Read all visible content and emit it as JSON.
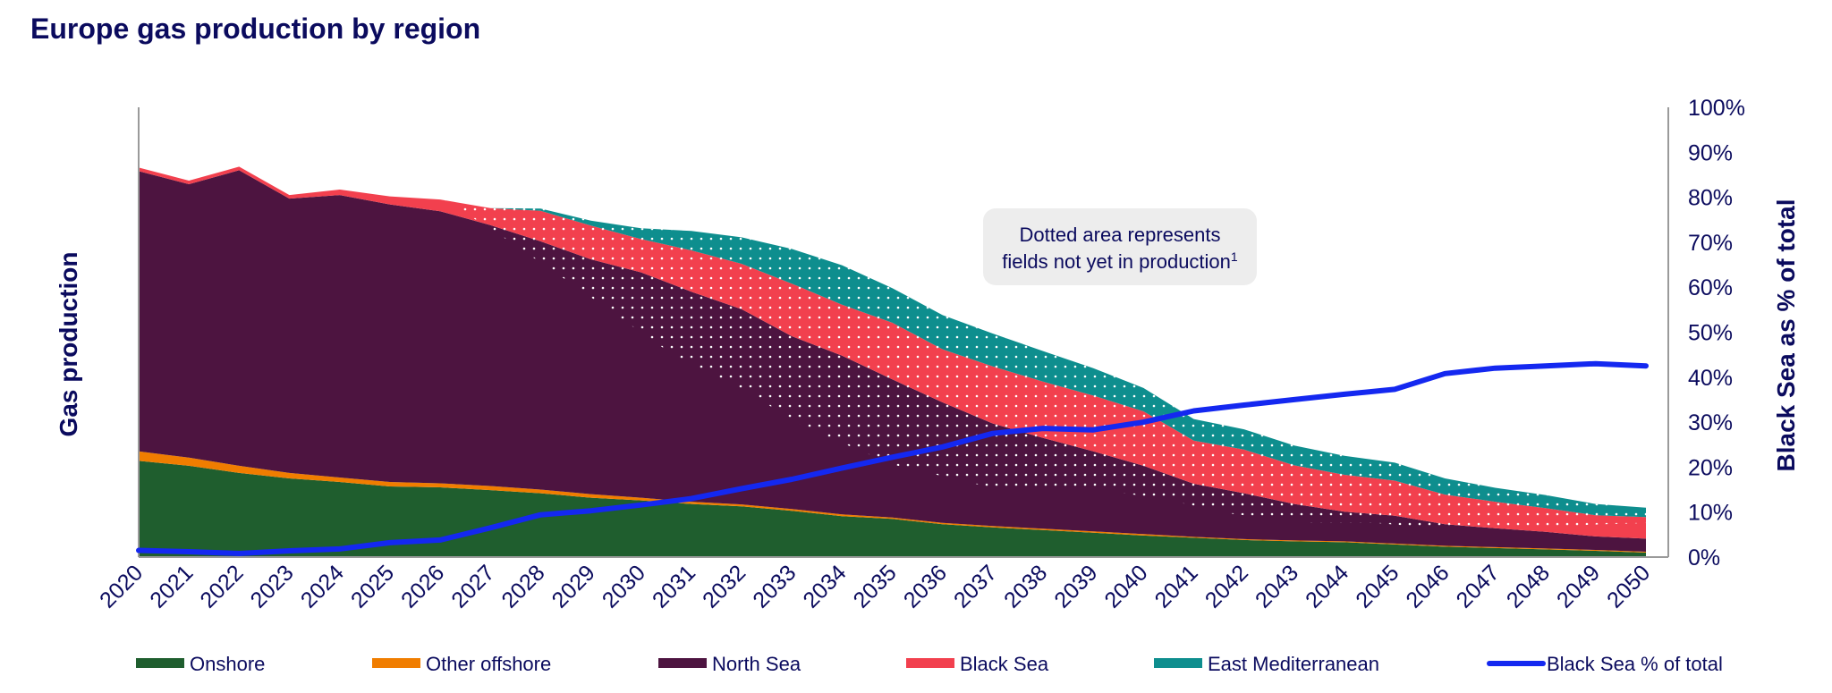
{
  "title": "Europe gas production by region",
  "annotation": {
    "line1": "Dotted area represents",
    "line2": "fields not yet in production",
    "superscript": "1"
  },
  "chart_data": {
    "type": "area",
    "title": "Europe gas production by region",
    "ylabel": "Gas production",
    "y2label": "Black Sea as % of total",
    "x": [
      2020,
      2021,
      2022,
      2023,
      2024,
      2025,
      2026,
      2027,
      2028,
      2029,
      2030,
      2031,
      2032,
      2033,
      2034,
      2035,
      2036,
      2037,
      2038,
      2039,
      2040,
      2041,
      2042,
      2043,
      2044,
      2045,
      2046,
      2047,
      2048,
      2049,
      2050
    ],
    "ylim": [
      0,
      100
    ],
    "y2lim": [
      0,
      100
    ],
    "y2_ticks": [
      "0%",
      "10%",
      "20%",
      "30%",
      "40%",
      "50%",
      "60%",
      "70%",
      "80%",
      "90%",
      "100%"
    ],
    "stacked": true,
    "series": [
      {
        "name": "Onshore",
        "color": "#1f5e2e",
        "values": [
          21.4,
          20.3,
          18.7,
          17.5,
          16.7,
          15.7,
          15.5,
          14.9,
          14.2,
          13.2,
          12.6,
          11.8,
          11.3,
          10.3,
          9.1,
          8.5,
          7.3,
          6.6,
          6.0,
          5.4,
          4.8,
          4.3,
          3.8,
          3.5,
          3.3,
          2.8,
          2.3,
          2.0,
          1.7,
          1.4,
          1.0
        ]
      },
      {
        "name": "Other offshore",
        "color": "#f07d00",
        "values": [
          2.1,
          1.8,
          1.6,
          1.2,
          1.0,
          1.0,
          0.9,
          0.9,
          0.8,
          0.8,
          0.6,
          0.5,
          0.4,
          0.4,
          0.4,
          0.3,
          0.3,
          0.3,
          0.3,
          0.3,
          0.3,
          0.2,
          0.2,
          0.2,
          0.2,
          0.2,
          0.2,
          0.2,
          0.2,
          0.2,
          0.2
        ]
      },
      {
        "name": "North Sea",
        "color": "#4d1440",
        "values": [
          62.3,
          60.8,
          65.7,
          61.0,
          62.8,
          61.7,
          60.5,
          58.0,
          55.2,
          52.2,
          50.1,
          46.7,
          43.4,
          38.4,
          35.3,
          30.7,
          26.8,
          22.8,
          20.2,
          17.8,
          15.2,
          11.8,
          10.2,
          8.1,
          6.6,
          6.2,
          4.8,
          4.2,
          3.7,
          3.0,
          2.9
        ]
      },
      {
        "name": "Black Sea",
        "color": "#f2404e",
        "values": [
          0.8,
          0.8,
          0.8,
          0.8,
          1.2,
          1.8,
          2.6,
          3.8,
          6.8,
          7.5,
          7.4,
          9.2,
          10.1,
          11.7,
          11.3,
          12.6,
          11.8,
          12.7,
          12.5,
          12.4,
          12.1,
          9.6,
          9.7,
          8.6,
          8.2,
          7.8,
          6.6,
          5.9,
          5.3,
          4.7,
          4.8
        ]
      },
      {
        "name": "East Mediterranean",
        "color": "#0e8e8e",
        "values": [
          0,
          0,
          0,
          0,
          0,
          0,
          0,
          0,
          0.5,
          1.1,
          2.4,
          4.3,
          5.9,
          7.7,
          8.8,
          7.7,
          7.6,
          7.3,
          6.8,
          6.1,
          5.2,
          4.8,
          4.5,
          4.4,
          4.2,
          4.0,
          3.6,
          3.1,
          2.9,
          2.5,
          2.1
        ]
      }
    ],
    "line": {
      "name": "Black Sea % of total",
      "color": "#1428f0",
      "axis": "right",
      "values": [
        1.5,
        1.2,
        0.8,
        1.4,
        1.8,
        3.2,
        3.8,
        6.5,
        9.4,
        10.3,
        11.6,
        13.0,
        15.2,
        17.3,
        19.8,
        22.2,
        24.5,
        27.5,
        28.6,
        28.3,
        30.0,
        32.5,
        33.8,
        35.0,
        36.2,
        37.3,
        40.8,
        42.0,
        42.5,
        43.0,
        42.5
      ]
    },
    "legend": [
      "Onshore",
      "Other offshore",
      "North Sea",
      "Black Sea",
      "East Mediterranean",
      "Black Sea % of total"
    ],
    "legend_position": "bottom",
    "grid": false
  }
}
